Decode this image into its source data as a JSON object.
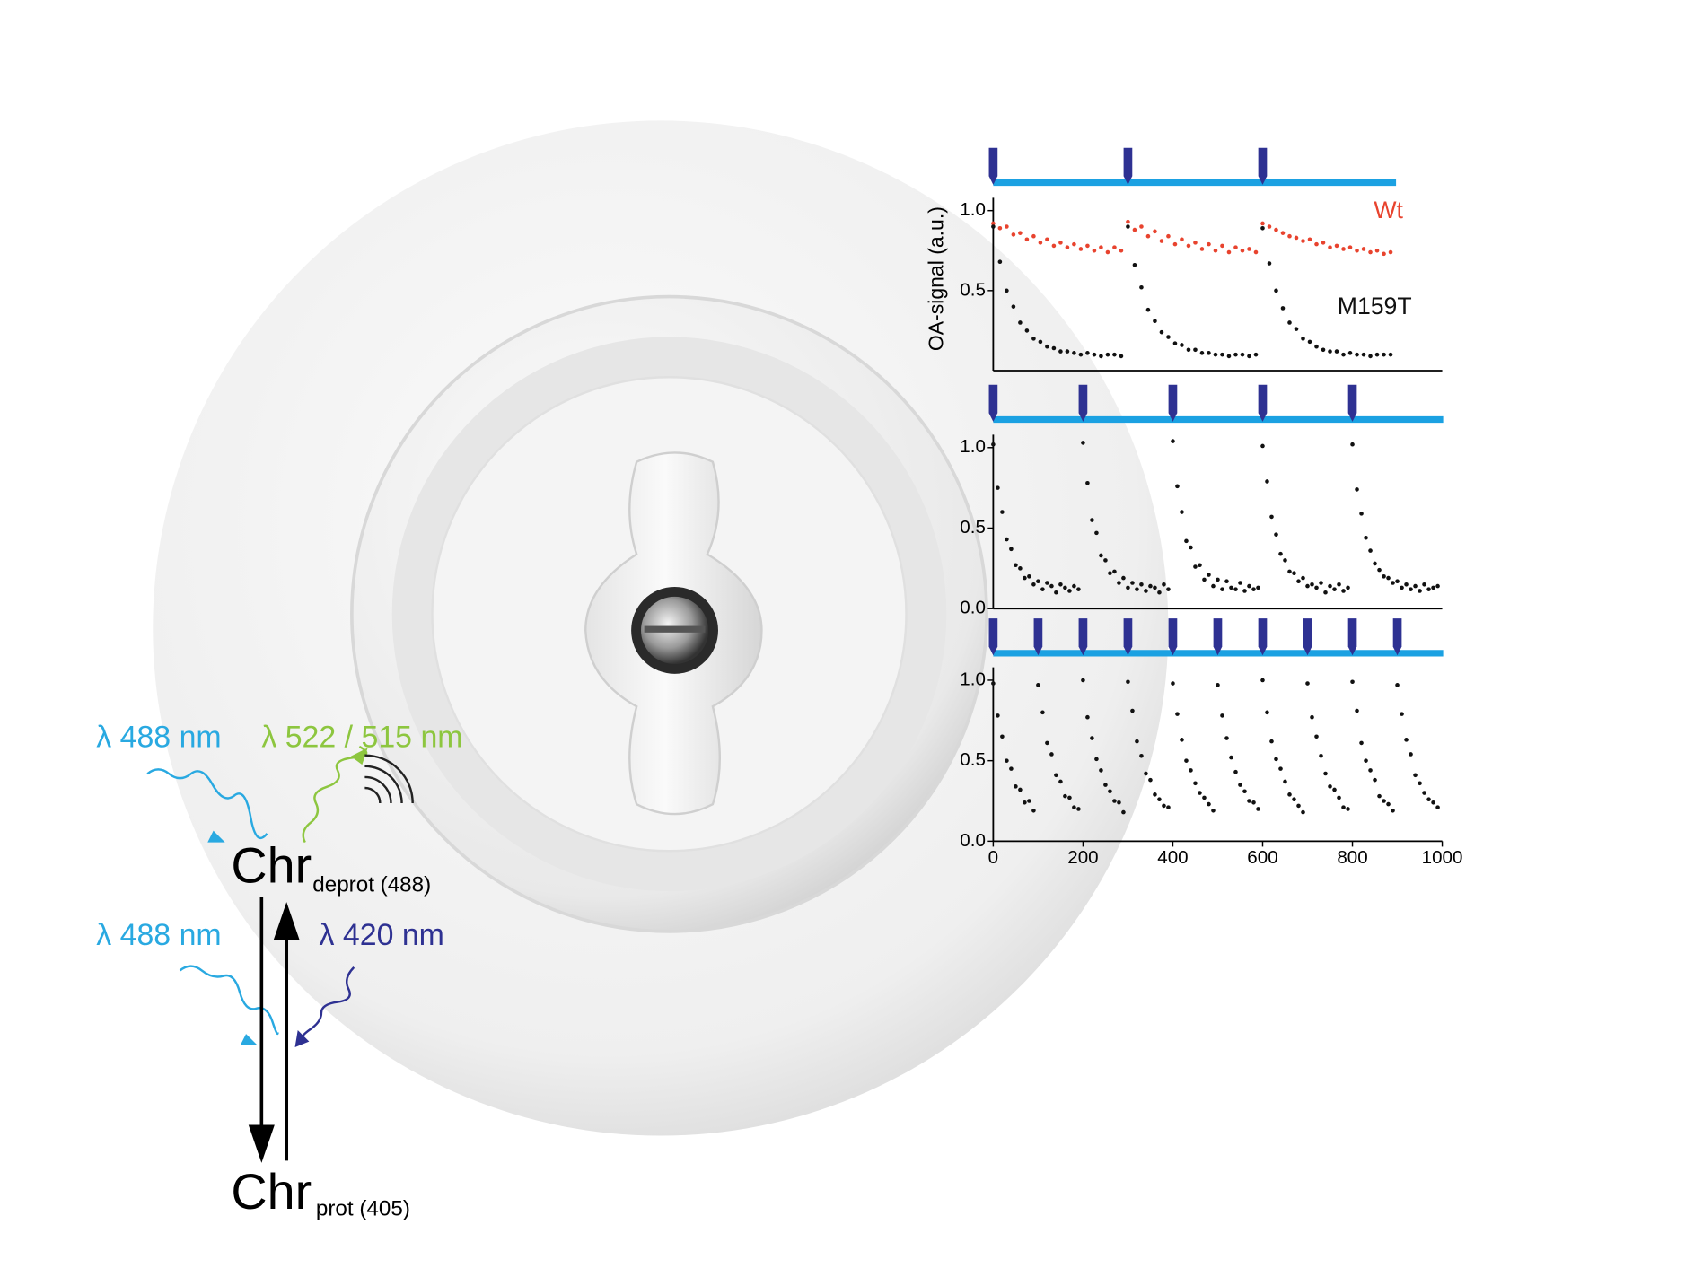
{
  "diagram": {
    "excitation_top": "λ 488 nm",
    "emission": "λ 522 / 515 nm",
    "state_top": "Chr",
    "state_top_sub": "deprot (488)",
    "excitation_bottom": "λ 488 nm",
    "switch_back": "λ 420 nm",
    "state_bottom": "Chr",
    "state_bottom_sub": "prot (405)"
  },
  "chart_data": [
    {
      "type": "scatter",
      "y_label": "OA-signal (a.u.)",
      "xlim": [
        0,
        1000
      ],
      "ylim": [
        0,
        1.08
      ],
      "yticks": [
        0.5,
        {
          "value": 1,
          "label": "1.0"
        }
      ],
      "pulses": [
        0,
        300,
        600
      ],
      "pulse_color": "#2e3192",
      "bar_color": "#1ba1e2",
      "series": [
        {
          "name": "Wt",
          "color": "#e8432e",
          "x": [
            0,
            15,
            30,
            45,
            60,
            75,
            90,
            105,
            120,
            135,
            150,
            165,
            180,
            195,
            210,
            225,
            240,
            255,
            270,
            285,
            300,
            315,
            330,
            345,
            360,
            375,
            390,
            405,
            420,
            435,
            450,
            465,
            480,
            495,
            510,
            525,
            540,
            555,
            570,
            585,
            600,
            615,
            630,
            645,
            660,
            675,
            690,
            705,
            720,
            735,
            750,
            765,
            780,
            795,
            810,
            825,
            840,
            855,
            870,
            885
          ],
          "values": [
            0.92,
            0.89,
            0.9,
            0.85,
            0.86,
            0.82,
            0.84,
            0.8,
            0.82,
            0.78,
            0.8,
            0.77,
            0.79,
            0.76,
            0.78,
            0.75,
            0.77,
            0.74,
            0.77,
            0.75,
            0.93,
            0.88,
            0.9,
            0.84,
            0.87,
            0.81,
            0.84,
            0.79,
            0.82,
            0.78,
            0.8,
            0.76,
            0.79,
            0.75,
            0.78,
            0.74,
            0.77,
            0.75,
            0.76,
            0.74,
            0.92,
            0.9,
            0.88,
            0.86,
            0.84,
            0.83,
            0.81,
            0.82,
            0.79,
            0.8,
            0.77,
            0.78,
            0.76,
            0.77,
            0.75,
            0.76,
            0.74,
            0.75,
            0.73,
            0.74
          ]
        },
        {
          "name": "M159T",
          "color": "#111111",
          "x": [
            0,
            15,
            30,
            45,
            60,
            75,
            90,
            105,
            120,
            135,
            150,
            165,
            180,
            195,
            210,
            225,
            240,
            255,
            270,
            285,
            300,
            315,
            330,
            345,
            360,
            375,
            390,
            405,
            420,
            435,
            450,
            465,
            480,
            495,
            510,
            525,
            540,
            555,
            570,
            585,
            600,
            615,
            630,
            645,
            660,
            675,
            690,
            705,
            720,
            735,
            750,
            765,
            780,
            795,
            810,
            825,
            840,
            855,
            870,
            885
          ],
          "values": [
            0.9,
            0.68,
            0.5,
            0.4,
            0.3,
            0.25,
            0.2,
            0.18,
            0.15,
            0.14,
            0.12,
            0.12,
            0.11,
            0.1,
            0.11,
            0.1,
            0.09,
            0.1,
            0.1,
            0.09,
            0.9,
            0.66,
            0.52,
            0.38,
            0.31,
            0.24,
            0.21,
            0.17,
            0.16,
            0.13,
            0.13,
            0.11,
            0.11,
            0.1,
            0.1,
            0.09,
            0.1,
            0.1,
            0.09,
            0.1,
            0.89,
            0.67,
            0.5,
            0.39,
            0.3,
            0.26,
            0.2,
            0.18,
            0.15,
            0.13,
            0.12,
            0.12,
            0.1,
            0.11,
            0.1,
            0.1,
            0.09,
            0.1,
            0.1,
            0.1
          ]
        }
      ]
    },
    {
      "type": "scatter",
      "xlim": [
        0,
        1000
      ],
      "ylim": [
        0,
        1.08
      ],
      "yticks": [
        {
          "value": 0,
          "label": "0.0"
        },
        0.5,
        {
          "value": 1,
          "label": "1.0"
        }
      ],
      "pulses": [
        0,
        200,
        400,
        600,
        800
      ],
      "pulse_color": "#2e3192",
      "bar_color": "#1ba1e2",
      "series": [
        {
          "color": "#111111",
          "x": [
            0,
            10,
            20,
            30,
            40,
            50,
            60,
            70,
            80,
            90,
            100,
            110,
            120,
            130,
            140,
            150,
            160,
            170,
            180,
            190,
            200,
            210,
            220,
            230,
            240,
            250,
            260,
            270,
            280,
            290,
            300,
            310,
            320,
            330,
            340,
            350,
            360,
            370,
            380,
            390,
            400,
            410,
            420,
            430,
            440,
            450,
            460,
            470,
            480,
            490,
            500,
            510,
            520,
            530,
            540,
            550,
            560,
            570,
            580,
            590,
            600,
            610,
            620,
            630,
            640,
            650,
            660,
            670,
            680,
            690,
            700,
            710,
            720,
            730,
            740,
            750,
            760,
            770,
            780,
            790,
            800,
            810,
            820,
            830,
            840,
            850,
            860,
            870,
            880,
            890,
            900,
            910,
            920,
            930,
            940,
            950,
            960,
            970,
            980,
            990
          ],
          "values": [
            1.02,
            0.75,
            0.6,
            0.43,
            0.37,
            0.27,
            0.25,
            0.19,
            0.2,
            0.15,
            0.17,
            0.12,
            0.16,
            0.14,
            0.1,
            0.15,
            0.13,
            0.11,
            0.14,
            0.12,
            1.03,
            0.78,
            0.55,
            0.47,
            0.33,
            0.3,
            0.22,
            0.23,
            0.16,
            0.19,
            0.13,
            0.16,
            0.12,
            0.15,
            0.11,
            0.14,
            0.13,
            0.1,
            0.15,
            0.12,
            1.04,
            0.76,
            0.6,
            0.42,
            0.38,
            0.26,
            0.27,
            0.18,
            0.21,
            0.14,
            0.18,
            0.12,
            0.17,
            0.13,
            0.12,
            0.16,
            0.11,
            0.14,
            0.12,
            0.13,
            1.01,
            0.79,
            0.57,
            0.46,
            0.34,
            0.3,
            0.23,
            0.22,
            0.17,
            0.19,
            0.14,
            0.15,
            0.13,
            0.16,
            0.1,
            0.14,
            0.12,
            0.15,
            0.11,
            0.13,
            1.02,
            0.74,
            0.59,
            0.44,
            0.36,
            0.28,
            0.24,
            0.2,
            0.19,
            0.16,
            0.17,
            0.13,
            0.15,
            0.12,
            0.14,
            0.11,
            0.15,
            0.12,
            0.13,
            0.14
          ]
        }
      ]
    },
    {
      "type": "scatter",
      "xlim": [
        0,
        1000
      ],
      "ylim": [
        0,
        1.08
      ],
      "xticks": [
        0,
        200,
        400,
        600,
        800,
        1000
      ],
      "yticks": [
        {
          "value": 0,
          "label": "0.0"
        },
        0.5,
        {
          "value": 1,
          "label": "1.0"
        }
      ],
      "pulses": [
        0,
        100,
        200,
        300,
        400,
        500,
        600,
        700,
        800,
        900
      ],
      "pulse_color": "#2e3192",
      "bar_color": "#1ba1e2",
      "series": [
        {
          "color": "#111111",
          "x": [
            0,
            10,
            20,
            30,
            40,
            50,
            60,
            70,
            80,
            90,
            100,
            110,
            120,
            130,
            140,
            150,
            160,
            170,
            180,
            190,
            200,
            210,
            220,
            230,
            240,
            250,
            260,
            270,
            280,
            290,
            300,
            310,
            320,
            330,
            340,
            350,
            360,
            370,
            380,
            390,
            400,
            410,
            420,
            430,
            440,
            450,
            460,
            470,
            480,
            490,
            500,
            510,
            520,
            530,
            540,
            550,
            560,
            570,
            580,
            590,
            600,
            610,
            620,
            630,
            640,
            650,
            660,
            670,
            680,
            690,
            700,
            710,
            720,
            730,
            740,
            750,
            760,
            770,
            780,
            790,
            800,
            810,
            820,
            830,
            840,
            850,
            860,
            870,
            880,
            890,
            900,
            910,
            920,
            930,
            940,
            950,
            960,
            970,
            980,
            990
          ],
          "values": [
            0.98,
            0.78,
            0.65,
            0.5,
            0.45,
            0.34,
            0.32,
            0.24,
            0.25,
            0.19,
            0.97,
            0.8,
            0.61,
            0.54,
            0.41,
            0.37,
            0.28,
            0.27,
            0.21,
            0.2,
            1.0,
            0.77,
            0.64,
            0.51,
            0.44,
            0.35,
            0.31,
            0.25,
            0.24,
            0.18,
            0.99,
            0.81,
            0.62,
            0.53,
            0.42,
            0.38,
            0.29,
            0.26,
            0.22,
            0.21,
            0.98,
            0.79,
            0.63,
            0.5,
            0.44,
            0.36,
            0.3,
            0.27,
            0.23,
            0.19,
            0.97,
            0.78,
            0.64,
            0.52,
            0.43,
            0.35,
            0.31,
            0.25,
            0.24,
            0.2,
            1.0,
            0.8,
            0.62,
            0.51,
            0.45,
            0.37,
            0.29,
            0.26,
            0.22,
            0.18,
            0.98,
            0.77,
            0.65,
            0.53,
            0.42,
            0.34,
            0.32,
            0.27,
            0.21,
            0.2,
            0.99,
            0.81,
            0.61,
            0.5,
            0.44,
            0.38,
            0.28,
            0.25,
            0.23,
            0.19,
            0.97,
            0.79,
            0.63,
            0.54,
            0.41,
            0.36,
            0.3,
            0.26,
            0.24,
            0.21
          ]
        }
      ]
    }
  ]
}
